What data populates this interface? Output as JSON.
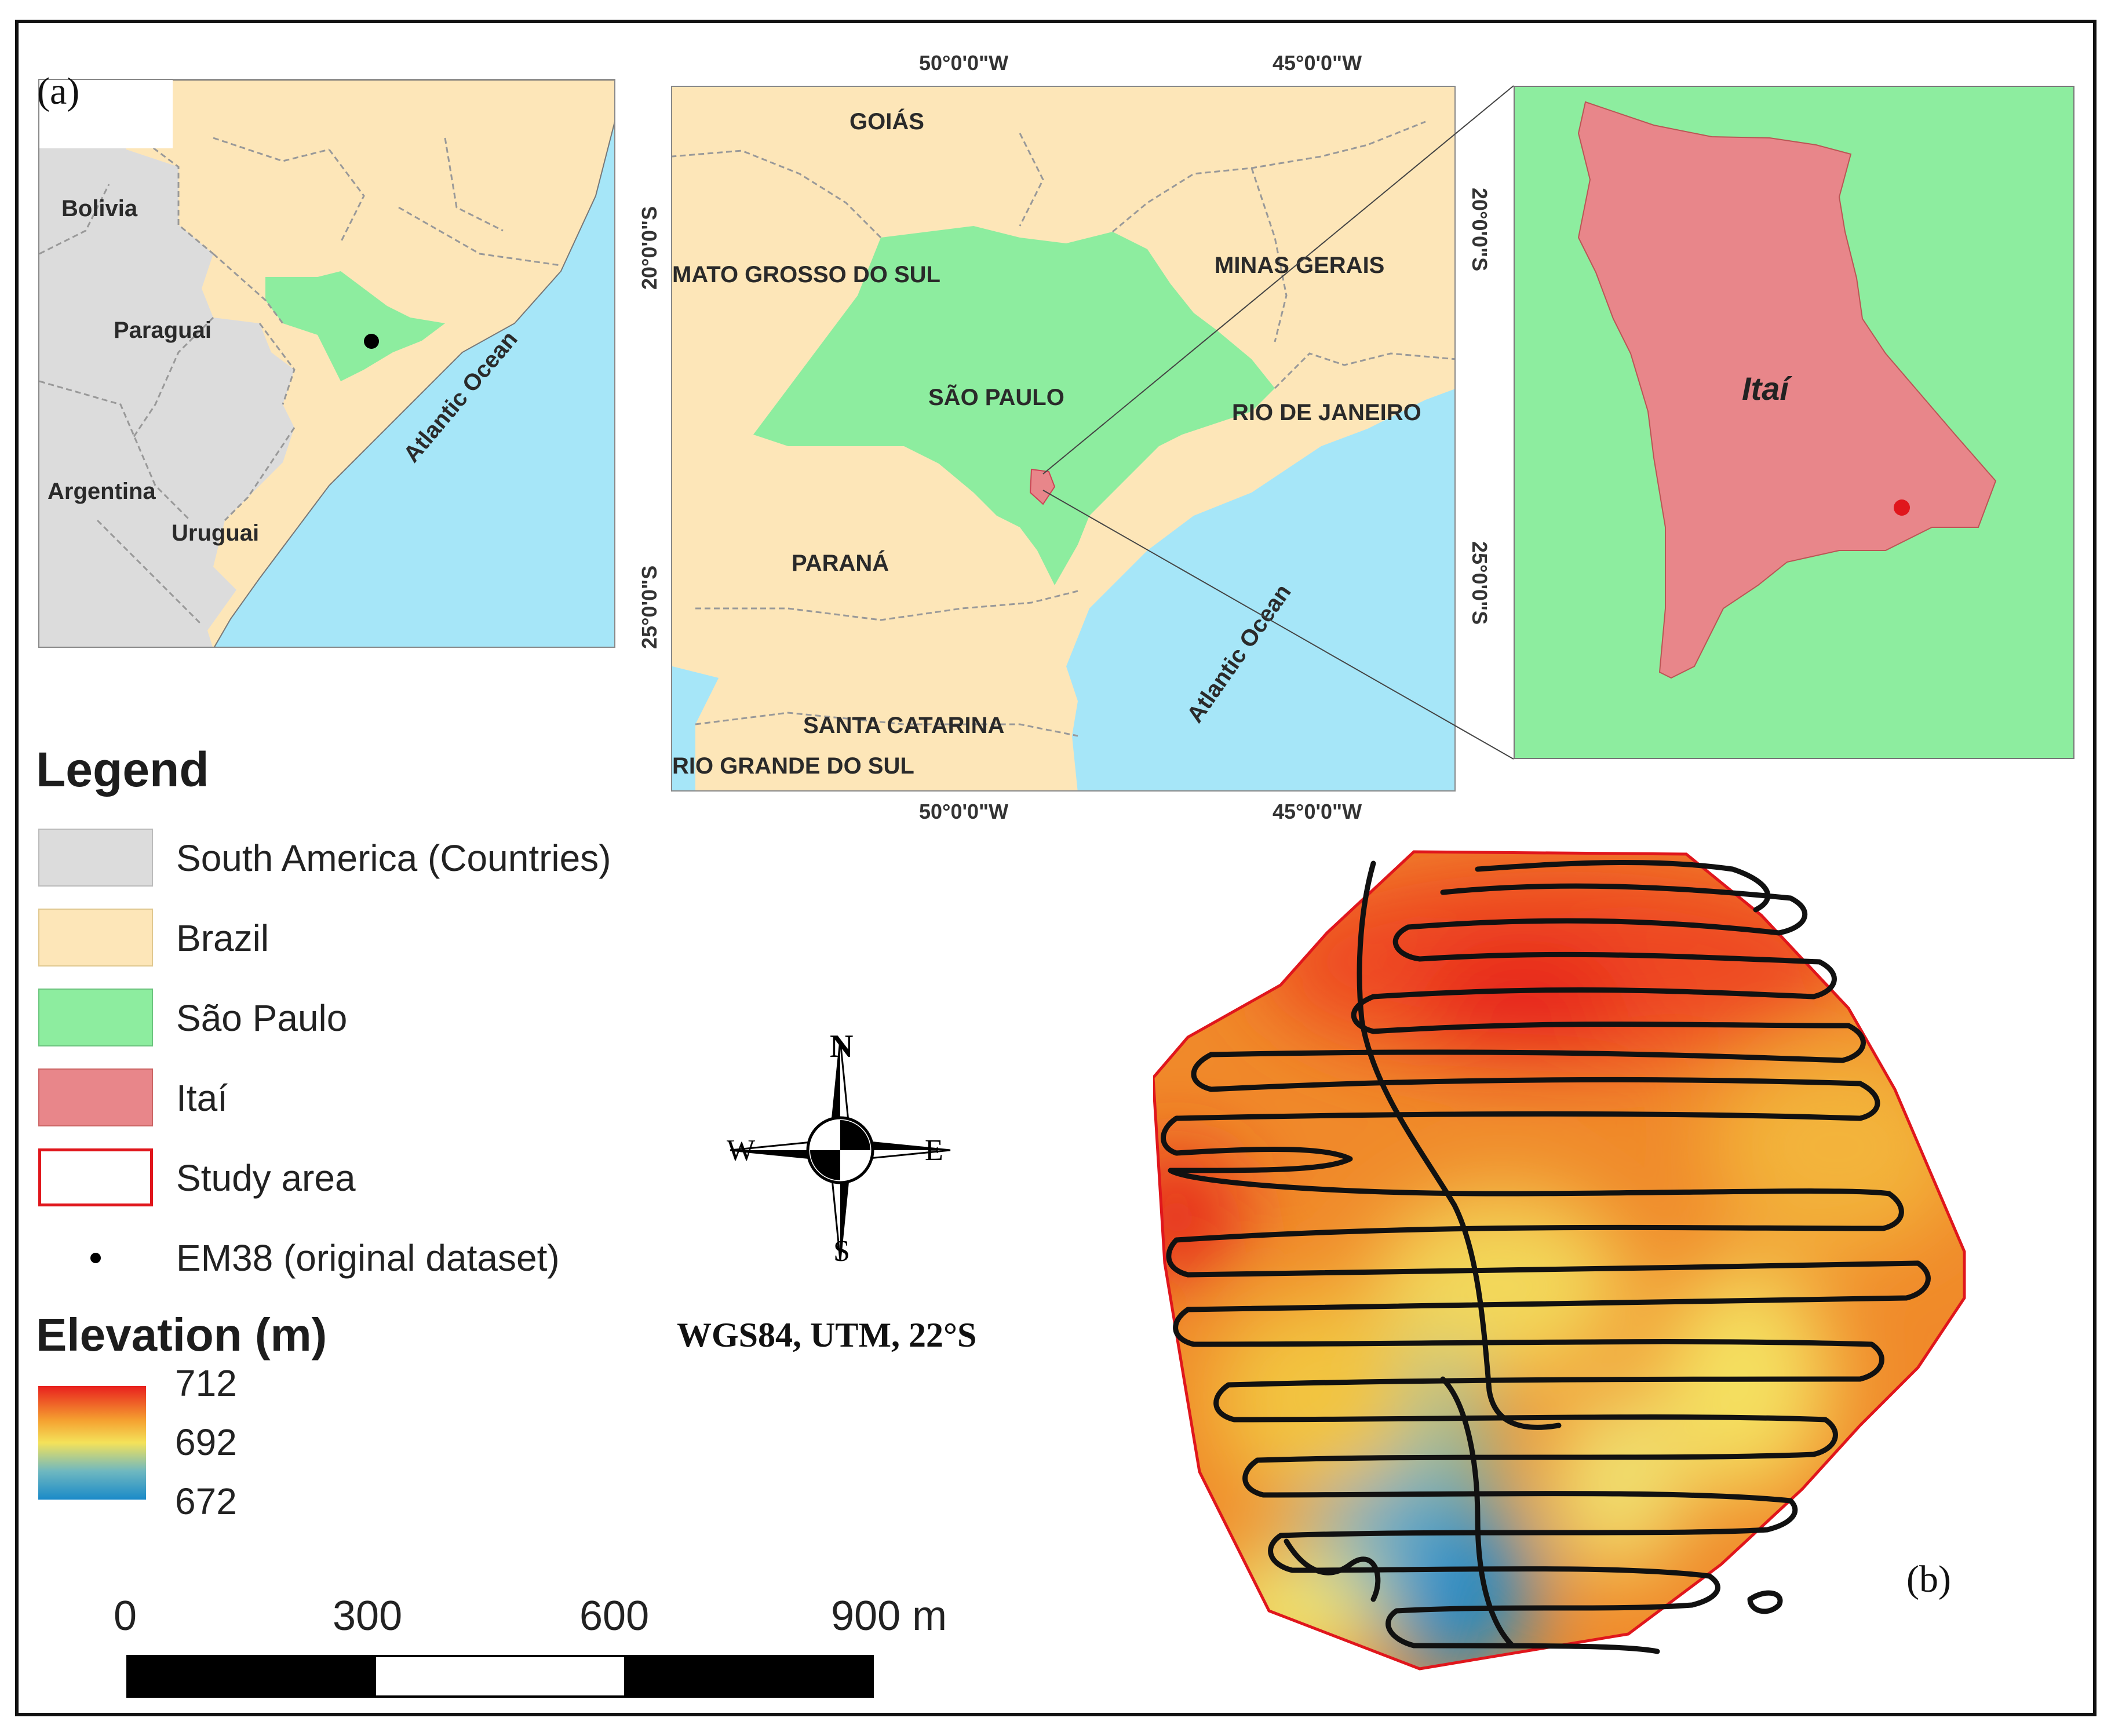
{
  "panel_a_label": "(a)",
  "panel_b_label": "(b)",
  "inset1": {
    "labels": {
      "bolivia": "Bolivia",
      "paraguai": "Paraguai",
      "argentina": "Argentina",
      "uruguai": "Uruguai",
      "ocean": "Atlantic Ocean"
    }
  },
  "inset2": {
    "lon_top_1": "50°0'0\"W",
    "lon_top_2": "45°0'0\"W",
    "lon_bottom_1": "50°0'0\"W",
    "lon_bottom_2": "45°0'0\"W",
    "lat_left_1": "20°0'0\"S",
    "lat_left_2": "25°0'0\"S",
    "lat_right_1": "20°0'0\"S",
    "lat_right_2": "25°0'0\"S",
    "labels": {
      "goias": "GOIÁS",
      "ms": "MATO GROSSO DO SUL",
      "mg": "MINAS GERAIS",
      "sp": "SÃO PAULO",
      "rj": "RIO DE JANEIRO",
      "pr": "PARANÁ",
      "sc": "SANTA CATARINA",
      "rs": "RIO GRANDE DO SUL",
      "ocean": "Atlantic Ocean"
    }
  },
  "inset3": {
    "label": "Itaí"
  },
  "legend": {
    "title": "Legend",
    "items": [
      {
        "label": "South America (Countries)",
        "color": "#dcdcdc"
      },
      {
        "label": "Brazil",
        "color": "#fde6b8"
      },
      {
        "label": "São Paulo",
        "color": "#8ded9f"
      },
      {
        "label": "Itaí",
        "color": "#e8868a"
      },
      {
        "label": "Study area",
        "color": "#e0161c"
      },
      {
        "label": "EM38 (original dataset)",
        "color": "#000000"
      }
    ]
  },
  "elevation": {
    "title": "Elevation (m)",
    "max": "712",
    "mid": "692",
    "min": "672",
    "colors": [
      "#e8201e",
      "#f5a030",
      "#f4e25a",
      "#6fb8c0",
      "#1a8ac8"
    ]
  },
  "compass": {
    "n": "N",
    "s": "S",
    "e": "E",
    "w": "W"
  },
  "crs": "WGS84, UTM, 22°S",
  "scalebar": {
    "t0": "0",
    "t1": "300",
    "t2": "600",
    "t3": "900 m"
  }
}
